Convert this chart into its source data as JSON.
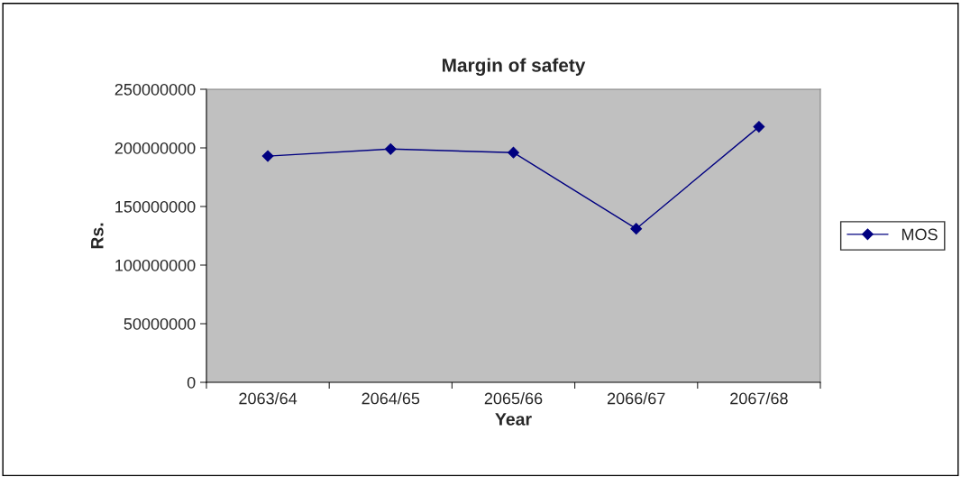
{
  "chart_data": {
    "type": "line",
    "title": "Margin of safety",
    "xlabel": "Year",
    "ylabel": "Rs.",
    "categories": [
      "2063/64",
      "2064/65",
      "2065/66",
      "2066/67",
      "2067/68"
    ],
    "series": [
      {
        "name": "MOS",
        "color": "#000080",
        "values": [
          193000000,
          199000000,
          196000000,
          131000000,
          218000000
        ]
      }
    ],
    "ylim": [
      0,
      250000000
    ],
    "yticks": [
      0,
      50000000,
      100000000,
      150000000,
      200000000,
      250000000
    ],
    "grid": false,
    "legend": "right",
    "marker": "diamond",
    "line_style": "solid"
  }
}
